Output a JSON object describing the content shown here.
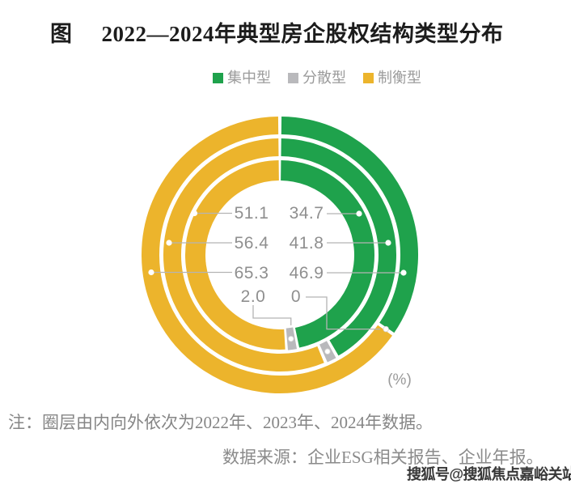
{
  "title": {
    "figure_label": "图",
    "text": "2022—2024年典型房企股权结构类型分布"
  },
  "legend": {
    "items": [
      {
        "label": "集中型",
        "color": "#1FA24C"
      },
      {
        "label": "分散型",
        "color": "#B9B9BC"
      },
      {
        "label": "制衡型",
        "color": "#ECB42C"
      }
    ]
  },
  "chart_data": {
    "type": "donut",
    "unit_label": "(%)",
    "categories": [
      "集中型",
      "分散型",
      "制衡型"
    ],
    "colors": {
      "集中型": "#1FA24C",
      "分散型": "#B9B9BC",
      "制衡型": "#ECB42C"
    },
    "ring_order_inner_to_outer": [
      "2022",
      "2023",
      "2024"
    ],
    "rings": [
      {
        "year": "2022",
        "position": "inner",
        "values": {
          "集中型": 46.9,
          "分散型": 2.0,
          "制衡型": 51.1
        }
      },
      {
        "year": "2023",
        "position": "middle",
        "values": {
          "集中型": 41.8,
          "分散型": 1.8,
          "制衡型": 56.4
        }
      },
      {
        "year": "2024",
        "position": "outer",
        "values": {
          "集中型": 34.7,
          "分散型": 0,
          "制衡型": 65.3
        }
      }
    ],
    "displayed_labels": {
      "rows": [
        {
          "left": "51.1",
          "right": "34.7"
        },
        {
          "left": "56.4",
          "right": "41.8"
        },
        {
          "left": "65.3",
          "right": "46.9"
        },
        {
          "left": "2.0",
          "right": "0"
        }
      ]
    }
  },
  "notes": {
    "ring_note": "注：圈层由内向外依次为2022年、2023年、2024年数据。",
    "source": "数据来源：企业ESG相关报告、企业年报。"
  },
  "watermark": "搜狐号@搜狐焦点嘉峪关站"
}
